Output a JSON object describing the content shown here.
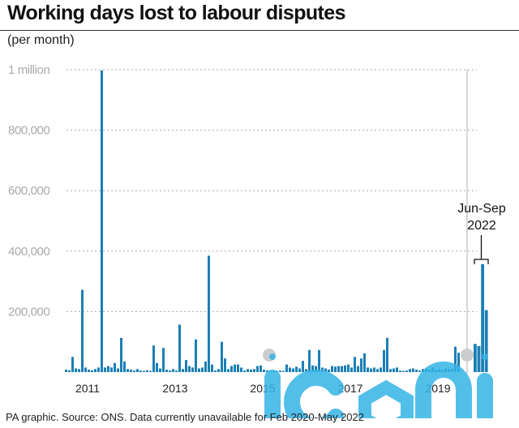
{
  "title": "Working days lost to labour disputes",
  "subtitle": "(per month)",
  "source": "PA graphic. Source: ONS. Data currently unavailable for Feb 2020-May 2022",
  "watermark_icon": "iconic-watermark-logo",
  "colors": {
    "bar": "#1b7fb6",
    "grid": "#aaaaaa",
    "gap_marker": "#cccccc",
    "watermark": "#35b4e6"
  },
  "chart_data": {
    "type": "bar",
    "title": "Working days lost to labour disputes",
    "subtitle": "(per month)",
    "xlabel": "",
    "ylabel": "",
    "ylim": [
      0,
      1000000
    ],
    "yticks": [
      200000,
      400000,
      600000,
      800000,
      1000000
    ],
    "ytick_labels": [
      "200,000",
      "400,000",
      "600,000",
      "800,000",
      "1 million"
    ],
    "xtick_labels": [
      "2011",
      "2013",
      "2015",
      "2017",
      "2019"
    ],
    "grid": true,
    "gap_note": "Data unavailable Feb 2020 - May 2022",
    "annotation": {
      "line1": "Jun-Sep",
      "line2": "2022"
    },
    "series": [
      {
        "values": [
          8000,
          6000,
          50000,
          12000,
          10000,
          272000,
          15000,
          8000,
          6000,
          10000,
          15000,
          998000,
          15000,
          20000,
          15000,
          30000,
          12000,
          113000,
          35000,
          10000,
          8000,
          5000,
          10000,
          5000,
          4000,
          6000,
          4000,
          88000,
          30000,
          12000,
          80000,
          8000,
          5000,
          10000,
          5000,
          157000,
          10000,
          40000,
          20000,
          15000,
          108000,
          12000,
          15000,
          35000,
          385000,
          25000,
          5000,
          10000,
          100000,
          45000,
          10000,
          20000,
          25000,
          25000,
          15000,
          5000,
          10000,
          8000,
          10000,
          20000,
          22000,
          8000,
          5000,
          3000,
          5000,
          4000,
          5000,
          4000,
          25000,
          15000,
          12000,
          18000,
          12000,
          37000,
          10000,
          73000,
          22000,
          20000,
          73000,
          15000,
          12000,
          8000,
          20000,
          18000,
          20000,
          20000,
          22000,
          25000,
          15000,
          50000,
          20000,
          45000,
          62000,
          15000,
          12000,
          15000,
          10000,
          15000,
          73000,
          113000,
          10000,
          12000,
          15000,
          5000,
          4000,
          5000,
          10000,
          12000,
          8000,
          5000,
          10000,
          12000,
          8000,
          15000,
          8000,
          10000,
          8000,
          12000,
          10000,
          10000,
          84000,
          64000
        ]
      },
      {
        "values": [
          93000,
          86000,
          357000,
          205000
        ]
      }
    ]
  }
}
